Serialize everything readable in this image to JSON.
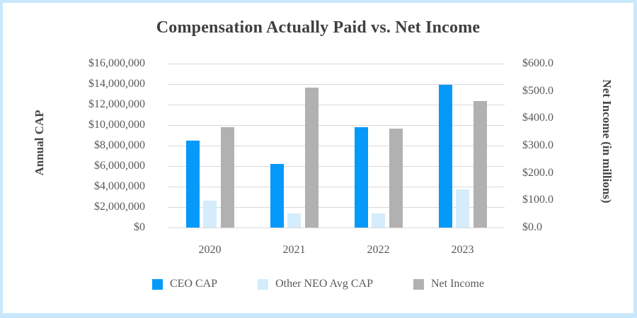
{
  "title": "Compensation Actually Paid vs. Net Income",
  "colors": {
    "ceo_cap": "#0599fa",
    "other_neo_cap": "#d4ecfb",
    "net_income": "#b1b1b1",
    "gridline": "#d9d9d9",
    "axis_text": "#595959",
    "title_text": "#3f3f3f",
    "frame_border": "#c9e8fb",
    "background": "#ffffff"
  },
  "left_axis": {
    "title": "Annual CAP",
    "ticks": [
      "$16,000,000",
      "$14,000,000",
      "$12,000,000",
      "$10,000,000",
      "$8,000,000",
      "$6,000,000",
      "$4,000,000",
      "$2,000,000",
      "$0"
    ],
    "min": 0,
    "max": 16000000
  },
  "right_axis": {
    "title": "Net Income (in millions)",
    "ticks": [
      "$600.0",
      "$500.0",
      "$400.0",
      "$300.0",
      "$200.0",
      "$100.0",
      "$0.0"
    ],
    "min": 0,
    "max": 600
  },
  "x_axis": {
    "categories": [
      "2020",
      "2021",
      "2022",
      "2023"
    ]
  },
  "legend": {
    "items": [
      {
        "label": "CEO CAP",
        "color_key": "ceo_cap"
      },
      {
        "label": "Other NEO Avg CAP",
        "color_key": "other_neo_cap"
      },
      {
        "label": "Net Income",
        "color_key": "net_income"
      }
    ]
  },
  "chart_data": {
    "type": "bar",
    "title": "Compensation Actually Paid vs. Net Income",
    "categories": [
      "2020",
      "2021",
      "2022",
      "2023"
    ],
    "series": [
      {
        "name": "CEO CAP",
        "axis": "left",
        "color_key": "ceo_cap",
        "values": [
          8500000,
          6200000,
          9800000,
          13900000
        ]
      },
      {
        "name": "Other NEO Avg CAP",
        "axis": "left",
        "color_key": "other_neo_cap",
        "values": [
          2600000,
          1400000,
          1400000,
          3700000
        ]
      },
      {
        "name": "Net Income",
        "axis": "right",
        "color_key": "net_income",
        "values": [
          368,
          512,
          361,
          462
        ]
      }
    ],
    "left_ylim": [
      0,
      16000000
    ],
    "right_ylim": [
      0,
      600
    ],
    "grid": true,
    "legend_position": "bottom"
  }
}
